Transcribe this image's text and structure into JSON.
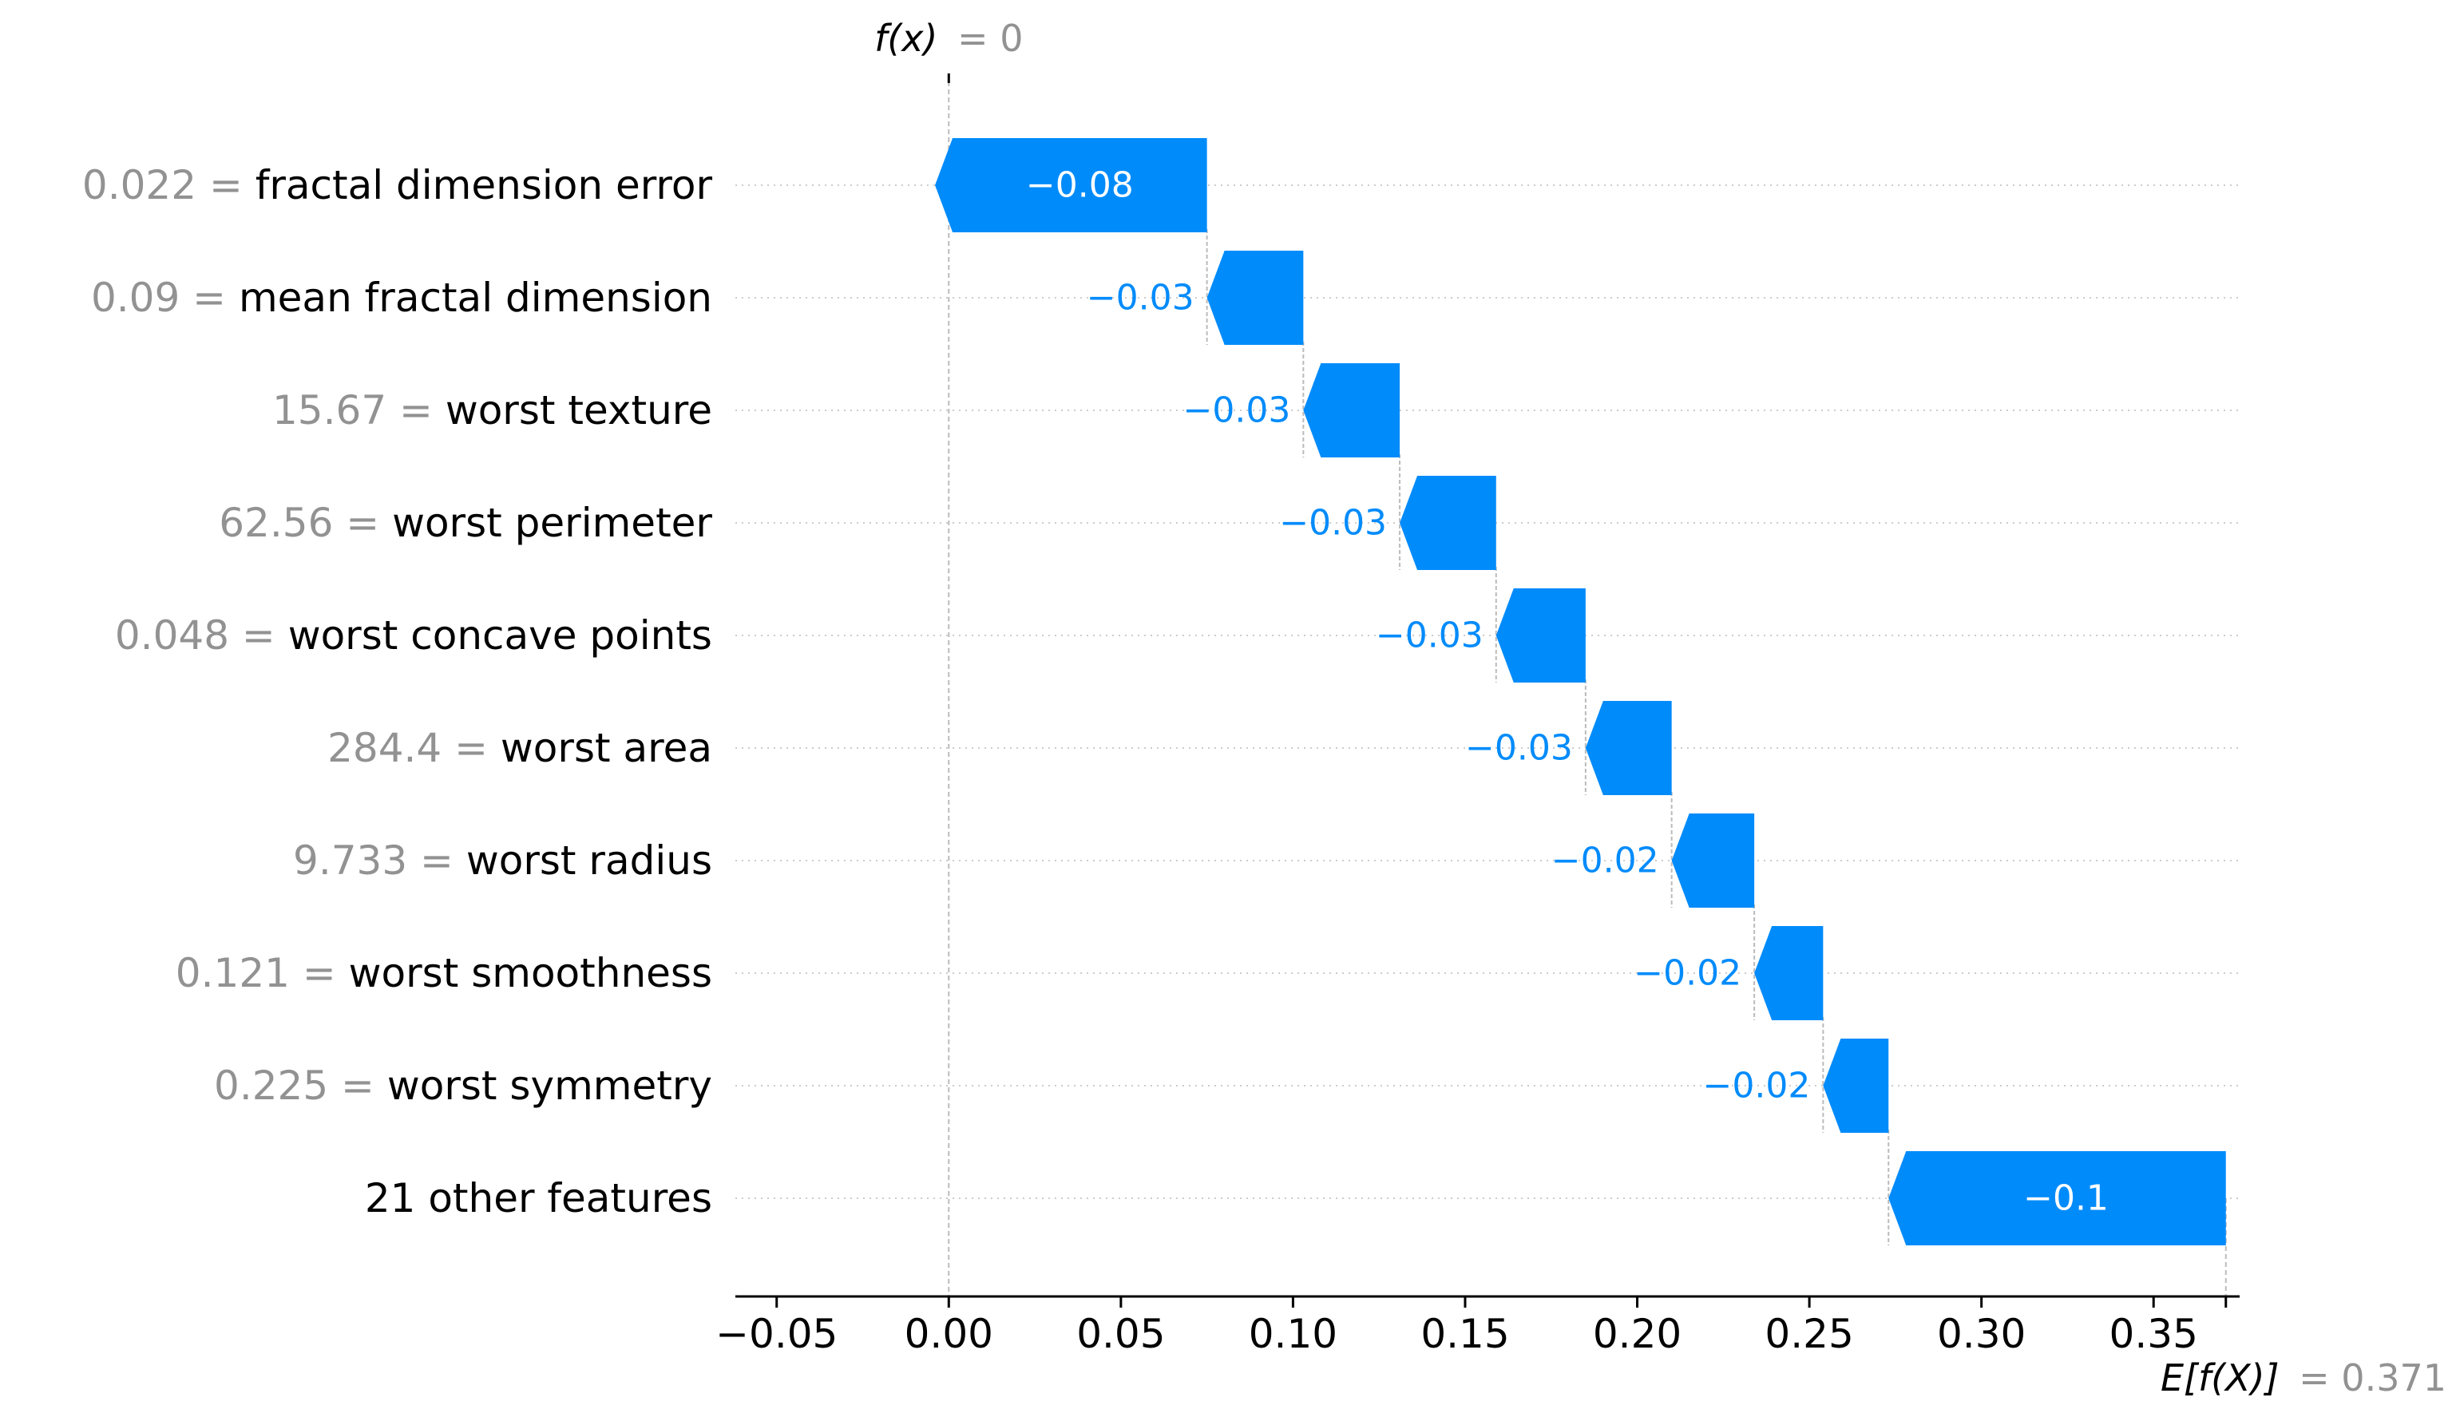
{
  "chart_data": {
    "type": "waterfall",
    "base_value": 0.371,
    "base_value_label": "E[f(X)]",
    "base_value_text": "= 0.371",
    "output_value": 0,
    "output_value_label": "f(x)",
    "output_value_text": "= 0",
    "xlim": [
      -0.062,
      0.375
    ],
    "xticks": [
      -0.05,
      0.0,
      0.05,
      0.1,
      0.15,
      0.2,
      0.25,
      0.3,
      0.35
    ],
    "xtick_labels": [
      "−0.05",
      "0.00",
      "0.05",
      "0.10",
      "0.15",
      "0.20",
      "0.25",
      "0.30",
      "0.35"
    ],
    "grid": "horizontal dotted per row",
    "colors": {
      "negative": "#008bfb",
      "muted_text": "#929292",
      "text": "#000000",
      "connector": "#bbbbbb"
    },
    "features": [
      {
        "value": "0.022",
        "name": "fractal dimension error",
        "contribution": -0.079,
        "label": "−0.08"
      },
      {
        "value": "0.09",
        "name": "mean fractal dimension",
        "contribution": -0.028,
        "label": "−0.03"
      },
      {
        "value": "15.67",
        "name": "worst texture",
        "contribution": -0.028,
        "label": "−0.03"
      },
      {
        "value": "62.56",
        "name": "worst perimeter",
        "contribution": -0.028,
        "label": "−0.03"
      },
      {
        "value": "0.048",
        "name": "worst concave points",
        "contribution": -0.026,
        "label": "−0.03"
      },
      {
        "value": "284.4",
        "name": "worst area",
        "contribution": -0.025,
        "label": "−0.03"
      },
      {
        "value": "9.733",
        "name": "worst radius",
        "contribution": -0.024,
        "label": "−0.02"
      },
      {
        "value": "0.121",
        "name": "worst smoothness",
        "contribution": -0.02,
        "label": "−0.02"
      },
      {
        "value": "0.225",
        "name": "worst symmetry",
        "contribution": -0.019,
        "label": "−0.02"
      },
      {
        "value": "",
        "name": "21 other features",
        "contribution": -0.098,
        "label": "−0.1"
      }
    ]
  }
}
